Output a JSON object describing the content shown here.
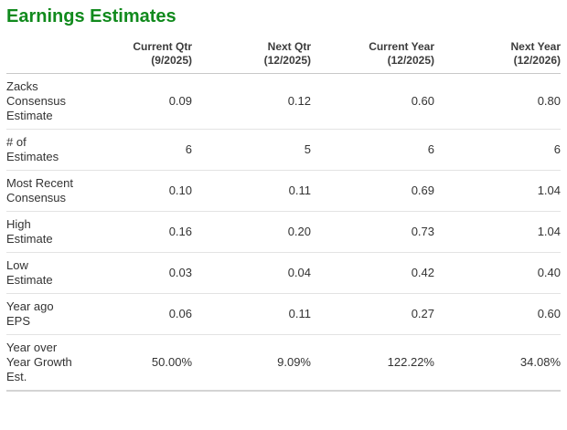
{
  "chart_data": {
    "type": "table",
    "title": "Earnings Estimates",
    "columns": [
      {
        "label": "Current Qtr",
        "period": "(9/2025)"
      },
      {
        "label": "Next Qtr",
        "period": "(12/2025)"
      },
      {
        "label": "Current Year",
        "period": "(12/2025)"
      },
      {
        "label": "Next Year",
        "period": "(12/2026)"
      }
    ],
    "rows": [
      {
        "label": "Zacks Consensus Estimate",
        "values": [
          "0.09",
          "0.12",
          "0.60",
          "0.80"
        ]
      },
      {
        "label": "# of Estimates",
        "values": [
          "6",
          "5",
          "6",
          "6"
        ]
      },
      {
        "label": "Most Recent Consensus",
        "values": [
          "0.10",
          "0.11",
          "0.69",
          "1.04"
        ]
      },
      {
        "label": "High Estimate",
        "values": [
          "0.16",
          "0.20",
          "0.73",
          "1.04"
        ]
      },
      {
        "label": "Low Estimate",
        "values": [
          "0.03",
          "0.04",
          "0.42",
          "0.40"
        ]
      },
      {
        "label": "Year ago EPS",
        "values": [
          "0.06",
          "0.11",
          "0.27",
          "0.60"
        ]
      },
      {
        "label": "Year over Year Growth Est.",
        "values": [
          "50.00%",
          "9.09%",
          "122.22%",
          "34.08%"
        ]
      }
    ]
  },
  "theme": {
    "title_color": "#118a1d",
    "text_color": "#333333",
    "header_rule_color": "#c9c9c9",
    "row_rule_color": "#e3e3e3"
  }
}
